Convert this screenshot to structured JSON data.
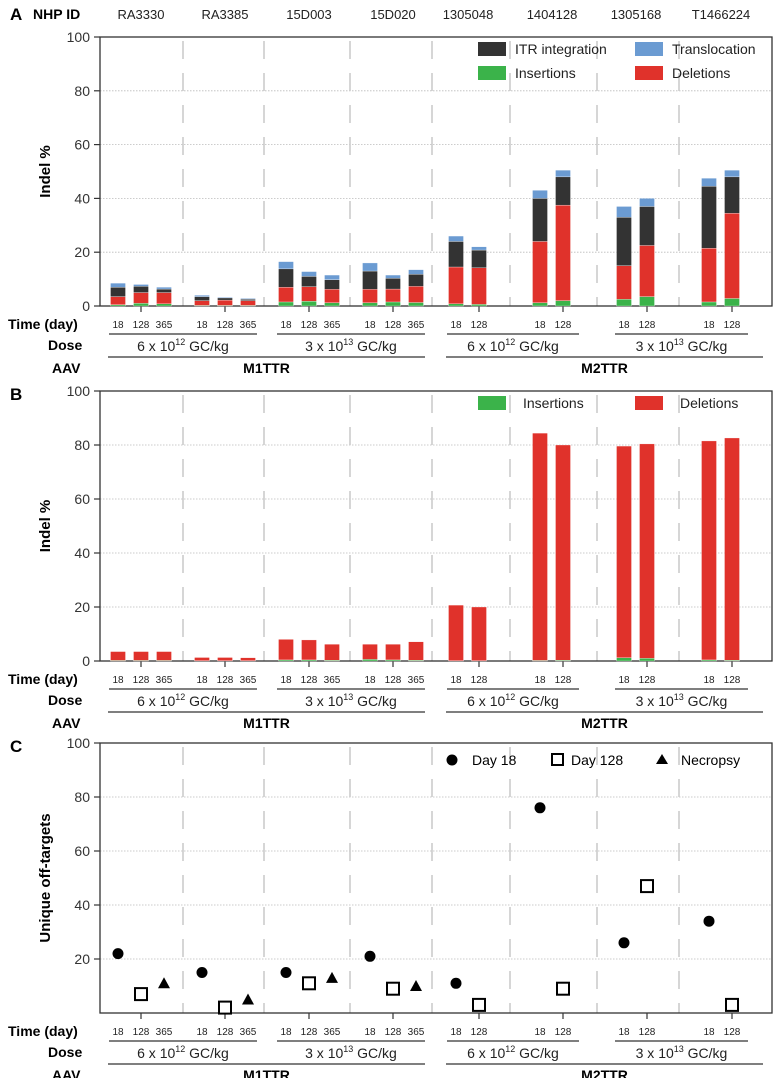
{
  "header": {
    "nhp_label": "NHP ID",
    "panel_labels": [
      "A",
      "B",
      "C"
    ]
  },
  "row_labels": {
    "time": "Time (day)",
    "dose": "Dose",
    "aav": "AAV"
  },
  "groups": [
    {
      "nhp_id": "RA3330",
      "times": [
        "18",
        "128",
        "365"
      ]
    },
    {
      "nhp_id": "RA3385",
      "times": [
        "18",
        "128",
        "365"
      ]
    },
    {
      "nhp_id": "15D003",
      "times": [
        "18",
        "128",
        "365"
      ]
    },
    {
      "nhp_id": "15D020",
      "times": [
        "18",
        "128",
        "365"
      ]
    },
    {
      "nhp_id": "1305048",
      "times": [
        "18",
        "128"
      ]
    },
    {
      "nhp_id": "1404128",
      "times": [
        "18",
        "128"
      ]
    },
    {
      "nhp_id": "1305168",
      "times": [
        "18",
        "128"
      ]
    },
    {
      "nhp_id": "T1466224",
      "times": [
        "18",
        "128"
      ]
    }
  ],
  "dose_spans": [
    {
      "text": "6 x 10",
      "sup": "12",
      "suffix": " GC/kg",
      "groups": [
        0,
        1
      ]
    },
    {
      "text": "3 x 10",
      "sup": "13",
      "suffix": " GC/kg",
      "groups": [
        2,
        3
      ]
    },
    {
      "text": "6 x 10",
      "sup": "12",
      "suffix": " GC/kg",
      "groups": [
        4,
        5
      ]
    },
    {
      "text": "3 x 10",
      "sup": "13",
      "suffix": " GC/kg",
      "groups": [
        6,
        7
      ]
    }
  ],
  "aav_spans": [
    {
      "label": "M1TTR",
      "groups": [
        0,
        1,
        2,
        3
      ]
    },
    {
      "label": "M2TTR",
      "groups": [
        4,
        5,
        6,
        7
      ]
    }
  ],
  "chart_data": [
    {
      "panel": "A",
      "type": "bar",
      "stacked": true,
      "ylabel": "Indel %",
      "ylim": [
        0,
        100
      ],
      "yticks": [
        0,
        20,
        40,
        60,
        80,
        100
      ],
      "grid": true,
      "legend": "top-right",
      "series": [
        {
          "name": "Insertions",
          "color": "#3bb34a",
          "values": [
            0.5,
            1,
            0.8,
            0.2,
            0.2,
            0.2,
            1.5,
            1.8,
            1.2,
            1.2,
            1.5,
            1.3,
            0.8,
            0.6,
            1.2,
            2,
            2.5,
            3.5,
            1.5,
            2.8
          ]
        },
        {
          "name": "Deletions",
          "color": "#e0322b",
          "values": [
            3,
            4,
            4.2,
            1.8,
            2,
            1.8,
            5.5,
            5.4,
            5,
            5,
            4.8,
            6,
            13.7,
            13.6,
            22.8,
            35.5,
            12.5,
            19,
            20,
            31.7
          ]
        },
        {
          "name": "ITR integration",
          "color": "#333333",
          "values": [
            3.5,
            2.3,
            1.3,
            1.5,
            0.8,
            0.5,
            6.8,
            3.8,
            3.6,
            6.8,
            4,
            4.5,
            9.5,
            6.6,
            16,
            10.5,
            18,
            14.5,
            23,
            13.5
          ]
        },
        {
          "name": "Translocation",
          "color": "#6b9bd2",
          "values": [
            1.5,
            0.7,
            0.7,
            0.5,
            0.3,
            0.3,
            2.7,
            1.8,
            1.7,
            3,
            1.2,
            1.7,
            2,
            1.2,
            3,
            2.5,
            4,
            3,
            3,
            2.5
          ]
        }
      ],
      "legend_order": [
        "ITR integration",
        "Translocation",
        "Insertions",
        "Deletions"
      ]
    },
    {
      "panel": "B",
      "type": "bar",
      "stacked": true,
      "ylabel": "Indel %",
      "ylim": [
        0,
        100
      ],
      "yticks": [
        0,
        20,
        40,
        60,
        80,
        100
      ],
      "grid": true,
      "legend": "top-right",
      "series": [
        {
          "name": "Insertions",
          "color": "#3bb34a",
          "values": [
            0.2,
            0.2,
            0.2,
            0.1,
            0.1,
            0.1,
            0.4,
            0.4,
            0.3,
            0.6,
            0.4,
            0.3,
            0.1,
            0.1,
            0.2,
            0.3,
            1.2,
            1,
            0.4,
            0.3
          ]
        },
        {
          "name": "Deletions",
          "color": "#e0322b",
          "values": [
            3.3,
            3.3,
            3.3,
            1.2,
            1.2,
            1.1,
            7.6,
            7.4,
            5.9,
            5.6,
            5.8,
            6.8,
            20.6,
            19.9,
            84.2,
            79.7,
            78.4,
            79.4,
            81.1,
            82.3
          ]
        }
      ],
      "legend_order": [
        "Insertions",
        "Deletions"
      ]
    },
    {
      "panel": "C",
      "type": "scatter",
      "ylabel": "Unique off-targets",
      "ylim": [
        0,
        100
      ],
      "yticks": [
        20,
        40,
        60,
        80,
        100
      ],
      "grid": true,
      "legend": "top-right",
      "series": [
        {
          "name": "Day 18",
          "marker": "circle",
          "time_index": 0,
          "values": [
            22,
            15,
            15,
            21,
            11,
            76,
            26,
            34
          ]
        },
        {
          "name": "Day 128",
          "marker": "open-square",
          "time_index": 1,
          "values": [
            7,
            2,
            11,
            9,
            3,
            9,
            47,
            3
          ]
        },
        {
          "name": "Necropsy",
          "marker": "triangle",
          "time_index": 2,
          "values": [
            11,
            5,
            13,
            10,
            null,
            null,
            null,
            null
          ]
        }
      ]
    }
  ]
}
